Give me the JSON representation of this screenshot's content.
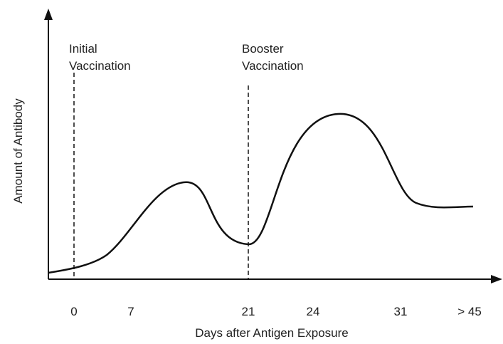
{
  "x_axis": {
    "label": "Days after Antigen Exposure",
    "ticks": [
      "0",
      "7",
      "21",
      "24",
      "31",
      "> 45"
    ]
  },
  "y_axis": {
    "label": "Amount of Antibody"
  },
  "annotations": [
    {
      "lines": [
        "Initial",
        "Vaccination"
      ]
    },
    {
      "lines": [
        "Booster",
        "Vaccination"
      ]
    }
  ]
}
